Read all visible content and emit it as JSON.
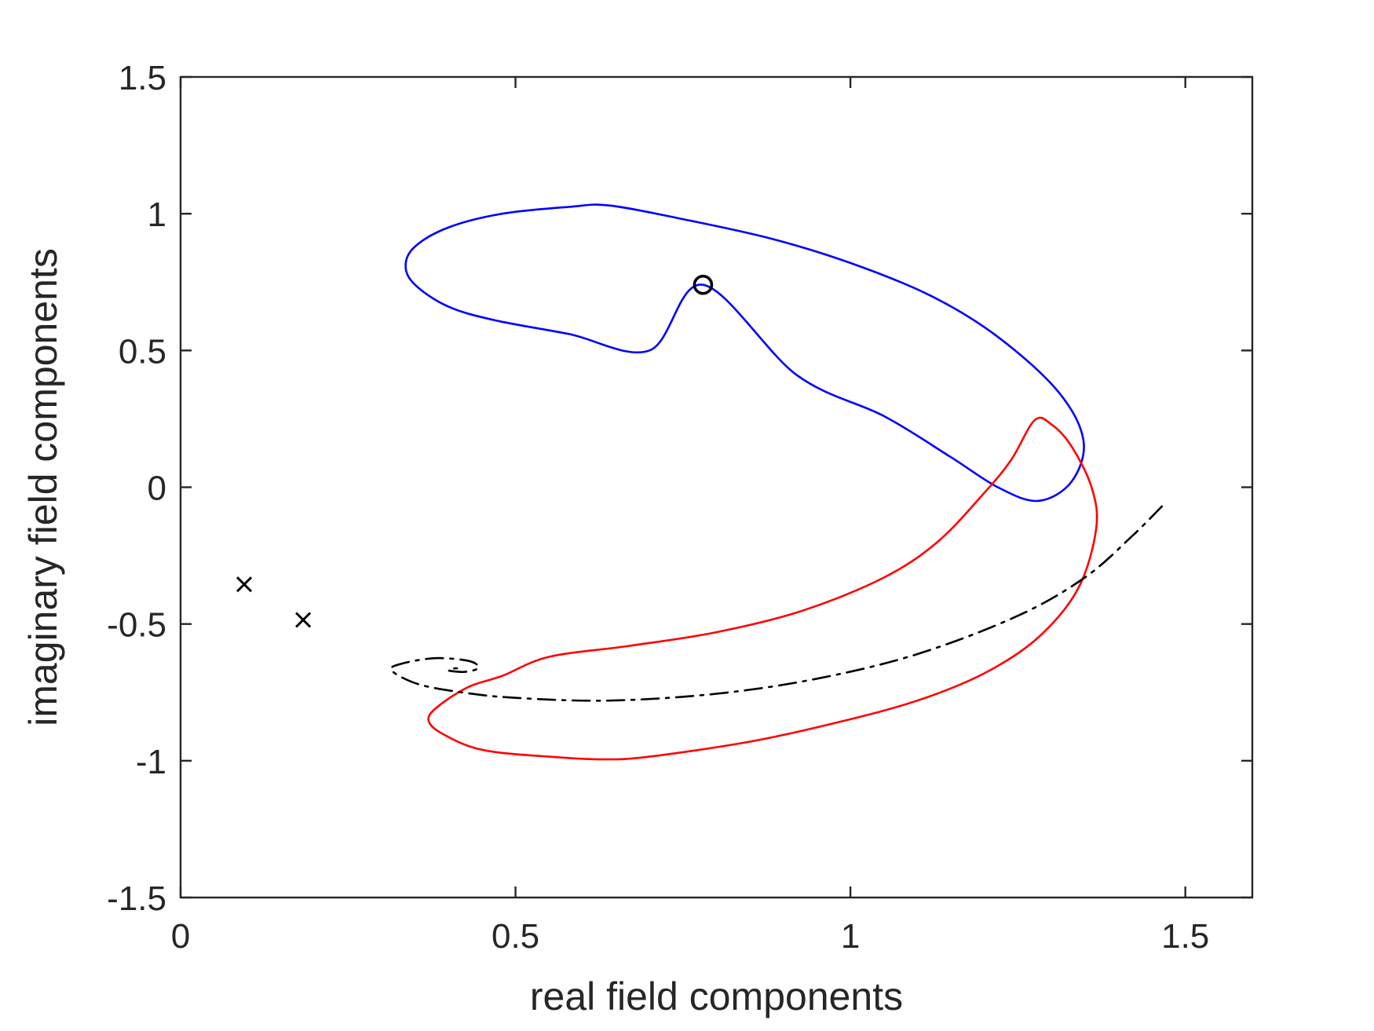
{
  "chart_data": {
    "type": "line",
    "title": "",
    "xlabel": "real field components",
    "ylabel": "imaginary field components",
    "xlim": [
      0,
      1.6
    ],
    "ylim": [
      -1.5,
      1.5
    ],
    "xticks": [
      0,
      0.5,
      1,
      1.5
    ],
    "xtick_labels": [
      "0",
      "0.5",
      "1",
      "1.5"
    ],
    "yticks": [
      -1.5,
      -1,
      -0.5,
      0,
      0.5,
      1,
      1.5
    ],
    "ytick_labels": [
      "-1.5",
      "-1",
      "-0.5",
      "0",
      "0.5",
      "1",
      "1.5"
    ],
    "grid": false,
    "box": true,
    "series": [
      {
        "color": "#0000ff",
        "style": "solid",
        "closed": true,
        "points": [
          [
            0.78,
            0.74
          ],
          [
            0.92,
            0.41
          ],
          [
            1.05,
            0.26
          ],
          [
            1.15,
            0.11
          ],
          [
            1.22,
            0.0
          ],
          [
            1.28,
            -0.05
          ],
          [
            1.33,
            0.02
          ],
          [
            1.348,
            0.17
          ],
          [
            1.31,
            0.35
          ],
          [
            1.22,
            0.55
          ],
          [
            1.12,
            0.7
          ],
          [
            1.0,
            0.82
          ],
          [
            0.88,
            0.91
          ],
          [
            0.75,
            0.98
          ],
          [
            0.64,
            1.03
          ],
          [
            0.58,
            1.025
          ],
          [
            0.48,
            1.0
          ],
          [
            0.4,
            0.95
          ],
          [
            0.35,
            0.88
          ],
          [
            0.336,
            0.81
          ],
          [
            0.35,
            0.74
          ],
          [
            0.4,
            0.66
          ],
          [
            0.47,
            0.61
          ],
          [
            0.58,
            0.56
          ],
          [
            0.7,
            0.5
          ]
        ]
      },
      {
        "color": "#ff0000",
        "style": "solid",
        "closed": true,
        "points": [
          [
            0.55,
            -0.62
          ],
          [
            0.67,
            -0.58
          ],
          [
            0.8,
            -0.53
          ],
          [
            0.93,
            -0.45
          ],
          [
            1.05,
            -0.33
          ],
          [
            1.13,
            -0.2
          ],
          [
            1.2,
            -0.02
          ],
          [
            1.24,
            0.1
          ],
          [
            1.275,
            0.245
          ],
          [
            1.3,
            0.23
          ],
          [
            1.33,
            0.15
          ],
          [
            1.36,
            0.0
          ],
          [
            1.367,
            -0.15
          ],
          [
            1.34,
            -0.37
          ],
          [
            1.28,
            -0.55
          ],
          [
            1.2,
            -0.68
          ],
          [
            1.1,
            -0.78
          ],
          [
            0.98,
            -0.86
          ],
          [
            0.85,
            -0.93
          ],
          [
            0.7,
            -0.985
          ],
          [
            0.63,
            -0.995
          ],
          [
            0.55,
            -0.985
          ],
          [
            0.45,
            -0.96
          ],
          [
            0.39,
            -0.9
          ],
          [
            0.37,
            -0.85
          ],
          [
            0.385,
            -0.8
          ],
          [
            0.43,
            -0.73
          ],
          [
            0.48,
            -0.69
          ]
        ]
      },
      {
        "color": "#000000",
        "style": "dashdot",
        "closed": false,
        "points": [
          [
            1.465,
            -0.07
          ],
          [
            1.42,
            -0.18
          ],
          [
            1.35,
            -0.33
          ],
          [
            1.25,
            -0.47
          ],
          [
            1.1,
            -0.61
          ],
          [
            0.95,
            -0.7
          ],
          [
            0.8,
            -0.755
          ],
          [
            0.64,
            -0.78
          ],
          [
            0.5,
            -0.77
          ],
          [
            0.42,
            -0.75
          ],
          [
            0.355,
            -0.72
          ],
          [
            0.315,
            -0.67
          ],
          [
            0.33,
            -0.645
          ],
          [
            0.38,
            -0.625
          ],
          [
            0.43,
            -0.635
          ],
          [
            0.445,
            -0.66
          ],
          [
            0.425,
            -0.675
          ],
          [
            0.4,
            -0.67
          ],
          [
            0.41,
            -0.662
          ],
          [
            0.42,
            -0.665
          ]
        ]
      }
    ],
    "markers": [
      {
        "symbol": "o",
        "color": "#000000",
        "x": 0.78,
        "y": 0.74
      },
      {
        "symbol": "x",
        "color": "#000000",
        "x": 0.095,
        "y": -0.355
      },
      {
        "symbol": "x",
        "color": "#000000",
        "x": 0.183,
        "y": -0.485
      }
    ]
  }
}
